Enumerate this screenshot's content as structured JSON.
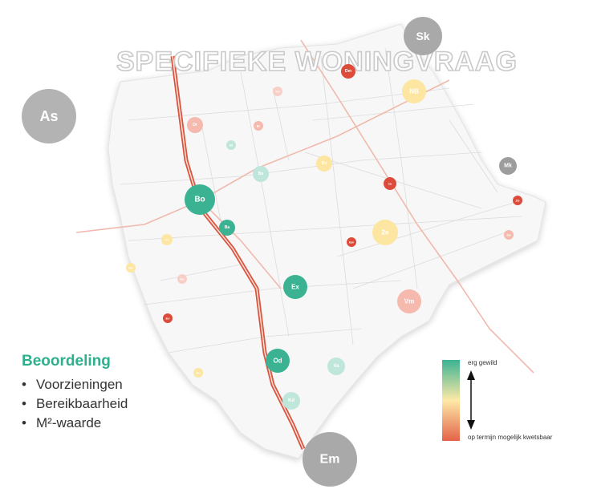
{
  "title": "SPECIFIEKE WONINGVRAAG",
  "legend": {
    "heading": "Beoordeling",
    "bullet": "•",
    "items": [
      "Voorzieningen",
      "Bereikbaarheid",
      "M²-waarde"
    ]
  },
  "scale": {
    "top_label": "erg gewild",
    "bottom_label": "op termijn mogelijk kwetsbaar",
    "colors": [
      "#3bb393",
      "#fde9a6",
      "#e46349"
    ]
  },
  "cities": [
    {
      "label": "Sk",
      "size": "small"
    },
    {
      "label": "As",
      "size": "large"
    },
    {
      "label": "Em",
      "size": "large"
    },
    {
      "label": "Mk",
      "size": "tiny"
    }
  ],
  "places": [
    {
      "label": "Dm",
      "color": "#dd4c3b",
      "size": 9
    },
    {
      "label": "NB",
      "color": "#fde6a1",
      "size": 15
    },
    {
      "label": "Dr",
      "color": "#f5b9ae",
      "size": 10
    },
    {
      "label": "Ov",
      "color": "#f8cfc7",
      "size": 6
    },
    {
      "label": "Br",
      "color": "#f5b9ae",
      "size": 6
    },
    {
      "label": "Bl",
      "color": "#bfe6da",
      "size": 6
    },
    {
      "label": "Bu",
      "color": "#bfe6da",
      "size": 10
    },
    {
      "label": "Bv",
      "color": "#fde6a1",
      "size": 10
    },
    {
      "label": "1e",
      "color": "#dd4c3b",
      "size": 8
    },
    {
      "label": "Bo",
      "color": "#3bb393",
      "size": 19
    },
    {
      "label": "Ba",
      "color": "#3bb393",
      "size": 10
    },
    {
      "label": "Vv",
      "color": "#fde6a1",
      "size": 7
    },
    {
      "label": "2e",
      "color": "#fde6a1",
      "size": 16
    },
    {
      "label": "Ew",
      "color": "#dd4c3b",
      "size": 6
    },
    {
      "label": "Zb",
      "color": "#dd4c3b",
      "size": 6
    },
    {
      "label": "Zw",
      "color": "#f5b9ae",
      "size": 6
    },
    {
      "label": "Oo",
      "color": "#fde6a1",
      "size": 6
    },
    {
      "label": "Ho",
      "color": "#f8cfc7",
      "size": 6
    },
    {
      "label": "Ex",
      "color": "#3bb393",
      "size": 15
    },
    {
      "label": "Vm",
      "color": "#f5b9ae",
      "size": 15
    },
    {
      "label": "Ev",
      "color": "#dd4c3b",
      "size": 6
    },
    {
      "label": "Od",
      "color": "#3bb393",
      "size": 15
    },
    {
      "label": "Va",
      "color": "#bfe6da",
      "size": 11
    },
    {
      "label": "Ku",
      "color": "#fde6a1",
      "size": 6
    },
    {
      "label": "Kd",
      "color": "#bfe6da",
      "size": 11
    }
  ]
}
